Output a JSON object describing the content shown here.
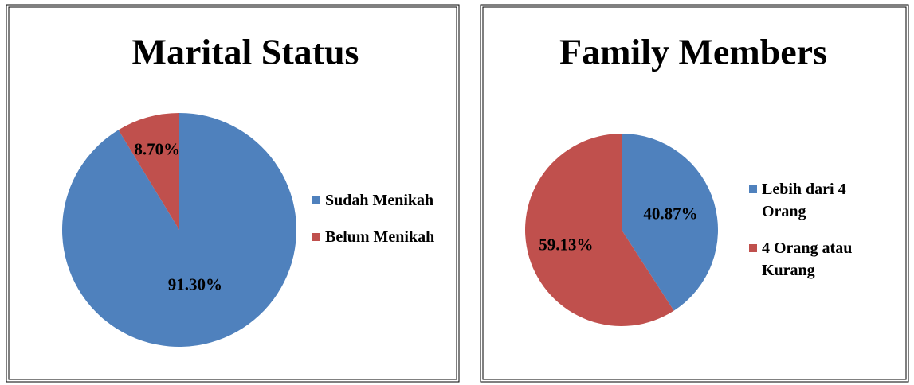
{
  "chart_data": [
    {
      "type": "pie",
      "title": "Marital Status",
      "categories": [
        "Sudah Menikah",
        "Belum Menikah"
      ],
      "values": [
        91.3,
        8.7
      ],
      "value_labels": [
        "91.30%",
        "8.70%"
      ],
      "colors": [
        "#4f81bd",
        "#c0504d"
      ],
      "legend": "right"
    },
    {
      "type": "pie",
      "title": "Family Members",
      "categories": [
        "Lebih dari 4 Orang",
        "4 Orang atau Kurang"
      ],
      "values": [
        40.87,
        59.13
      ],
      "value_labels": [
        "40.87%",
        "59.13%"
      ],
      "colors": [
        "#4f81bd",
        "#c0504d"
      ],
      "legend": "right"
    }
  ]
}
